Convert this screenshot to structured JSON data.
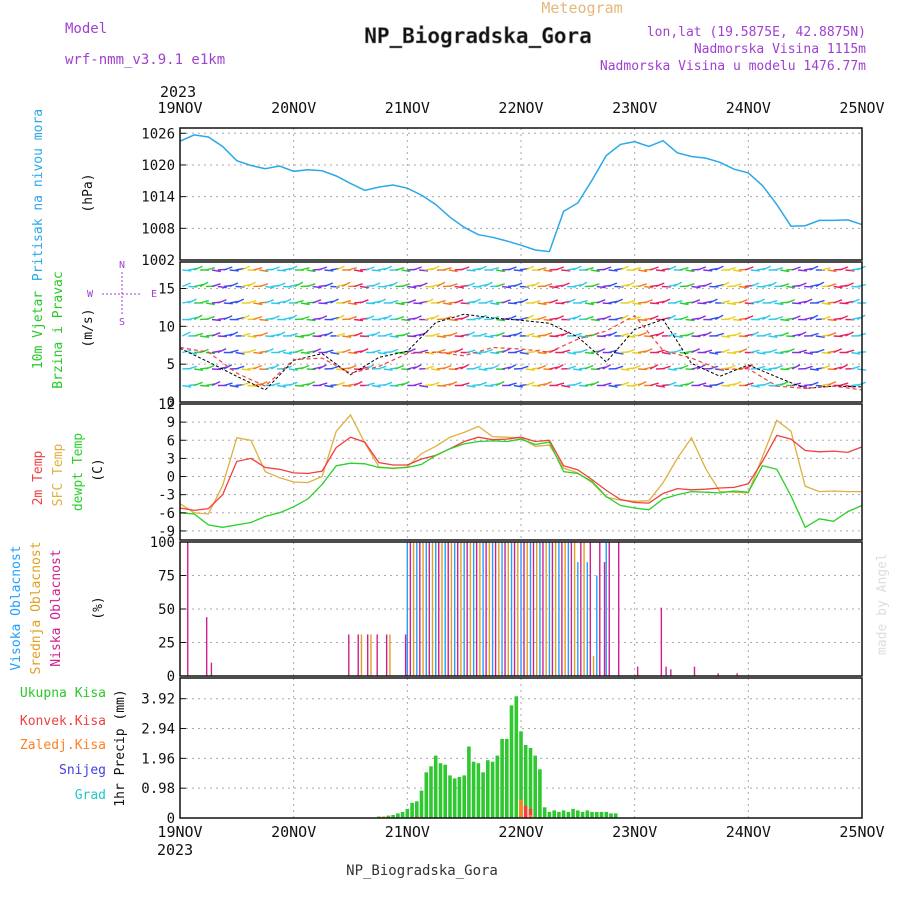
{
  "header": {
    "model_label": "Model",
    "model_name": "wrf-nmm_v3.9.1  e1km",
    "meteogram_label": "Meteogram",
    "station_title": "NP_Biogradska_Gora",
    "lonlat": "lon,lat (19.5875E, 42.8875N)",
    "elevation": "Nadmorska Visina 1115m",
    "model_elevation": "Nadmorska Visina u modelu 1476.77m"
  },
  "footer": {
    "station": "NP_Biogradska_Gora",
    "watermark": "made by Angel"
  },
  "time_axis": {
    "year": "2023",
    "ticks": [
      "19NOV",
      "20NOV",
      "21NOV",
      "22NOV",
      "23NOV",
      "24NOV",
      "25NOV"
    ],
    "hours_per_day": 24,
    "total_hours": 144
  },
  "colors": {
    "pressure": "#2aa8e8",
    "temp2m": "#f04040",
    "sfc_temp": "#e0b040",
    "dewpoint": "#28d028",
    "high_cloud": "#20a0ff",
    "mid_cloud": "#e0a020",
    "low_cloud": "#d02090",
    "total_precip": "#30c830",
    "conv_precip": "#f04040",
    "frozen_precip": "#ff8020",
    "snow": "#4040e0",
    "grad": "#20c8c8",
    "wind_speed": "#000000",
    "wind_gust": "#f04040",
    "legend_purple": "#a040d0"
  },
  "chart_data": [
    {
      "type": "line",
      "panel": "pressure",
      "ylabel": "Pritisak na nivou mora",
      "yunit": "(hPa)",
      "ylim": [
        1002,
        1027
      ],
      "yticks": [
        1002,
        1008,
        1014,
        1020,
        1026
      ],
      "grid": true,
      "series": [
        {
          "name": "Pritisak na nivou mora",
          "x": [
            0,
            3,
            6,
            9,
            12,
            15,
            18,
            21,
            24,
            27,
            30,
            33,
            36,
            39,
            42,
            45,
            48,
            51,
            54,
            57,
            60,
            63,
            66,
            69,
            72,
            75,
            78,
            81,
            84,
            87,
            90,
            93,
            96,
            99,
            102,
            105,
            108,
            111,
            114,
            117,
            120,
            123,
            126,
            129,
            132,
            135,
            138,
            141,
            144
          ],
          "y": [
            1024.5,
            1025.7,
            1025.3,
            1023.5,
            1020.8,
            1019.9,
            1019.3,
            1019.8,
            1018.8,
            1019.1,
            1018.9,
            1017.9,
            1016.5,
            1015.2,
            1015.8,
            1016.2,
            1015.6,
            1014.3,
            1012.5,
            1010.1,
            1008.2,
            1006.8,
            1006.3,
            1005.6,
            1004.8,
            1003.9,
            1003.6,
            1011.2,
            1012.8,
            1017.1,
            1021.8,
            1023.9,
            1024.4,
            1023.5,
            1024.6,
            1022.3,
            1021.6,
            1021.3,
            1020.5,
            1019.2,
            1018.5,
            1016.1,
            1012.5,
            1008.4,
            1008.5,
            1009.5,
            1009.5,
            1009.6,
            1008.7
          ]
        }
      ]
    },
    {
      "type": "line",
      "panel": "wind",
      "ylabel": "10m Vjetar Brzina i Pravac",
      "yunit": "(m/s)",
      "ylim": [
        0,
        18.5
      ],
      "yticks": [
        0,
        5,
        10,
        15
      ],
      "grid": true,
      "compass": [
        "N",
        "E",
        "S",
        "W"
      ],
      "series": [
        {
          "name": "brzina",
          "x": [
            0,
            6,
            12,
            18,
            24,
            30,
            36,
            42,
            48,
            54,
            60,
            66,
            72,
            78,
            84,
            90,
            96,
            102,
            108,
            114,
            120,
            126,
            132,
            138,
            144
          ],
          "y": [
            7.1,
            5.3,
            3.4,
            1.6,
            5.5,
            6.4,
            3.6,
            5.9,
            6.7,
            10.5,
            11.6,
            11.1,
            10.8,
            10.4,
            8.6,
            5.3,
            9.6,
            10.9,
            5.1,
            3.4,
            4.9,
            3.3,
            1.8,
            2.1,
            2.0
          ]
        },
        {
          "name": "udari",
          "x": [
            0,
            6,
            12,
            18,
            24,
            30,
            36,
            42,
            48,
            54,
            60,
            66,
            72,
            78,
            84,
            90,
            96,
            102,
            108,
            114,
            120,
            126,
            132,
            138,
            144
          ],
          "y": [
            7.2,
            6.6,
            3.8,
            2.1,
            5.6,
            5.8,
            3.8,
            4.7,
            6.4,
            6.6,
            6.1,
            7.2,
            7.0,
            6.6,
            8.3,
            9.4,
            11.4,
            6.8,
            5.8,
            4.3,
            4.4,
            2.1,
            1.8,
            2.1,
            1.6
          ]
        }
      ]
    },
    {
      "type": "line",
      "panel": "temperature",
      "ylabel": "Temp",
      "yunit": "(C)",
      "ylim": [
        -10.5,
        12
      ],
      "yticks": [
        -9,
        -6,
        -3,
        0,
        3,
        6,
        9,
        12
      ],
      "grid": true,
      "series": [
        {
          "name": "2m Temp",
          "x": [
            0,
            3,
            6,
            9,
            12,
            15,
            18,
            21,
            24,
            27,
            30,
            33,
            36,
            39,
            42,
            45,
            48,
            51,
            54,
            57,
            60,
            63,
            66,
            69,
            72,
            75,
            78,
            81,
            84,
            87,
            90,
            93,
            96,
            99,
            102,
            105,
            108,
            111,
            114,
            117,
            120,
            123,
            126,
            129,
            132,
            135,
            138,
            141,
            144
          ],
          "y": [
            -5.2,
            -5.6,
            -5.3,
            -3.0,
            2.5,
            3.0,
            1.5,
            1.2,
            0.6,
            0.5,
            0.9,
            4.8,
            6.5,
            5.7,
            2.3,
            1.9,
            1.9,
            2.9,
            3.5,
            4.6,
            5.8,
            6.5,
            6.1,
            6.2,
            6.5,
            5.8,
            6.0,
            1.8,
            1.1,
            -0.5,
            -2.3,
            -3.8,
            -4.3,
            -4.4,
            -2.8,
            -2.0,
            -2.2,
            -2.1,
            -1.9,
            -1.8,
            -1.2,
            2.5,
            6.8,
            6.2,
            4.3,
            4.1,
            4.2,
            4.0,
            4.9
          ]
        },
        {
          "name": "SFC Temp",
          "x": [
            0,
            3,
            6,
            9,
            12,
            15,
            18,
            21,
            24,
            27,
            30,
            33,
            36,
            39,
            42,
            45,
            48,
            51,
            54,
            57,
            60,
            63,
            66,
            69,
            72,
            75,
            78,
            81,
            84,
            87,
            90,
            93,
            96,
            99,
            102,
            105,
            108,
            111,
            114,
            117,
            120,
            123,
            126,
            129,
            132,
            135,
            138,
            141,
            144
          ],
          "y": [
            -4.5,
            -6.0,
            -6.2,
            -1.5,
            6.4,
            6.0,
            0.8,
            -0.2,
            -0.9,
            -1.0,
            0.0,
            7.5,
            10.2,
            5.6,
            1.6,
            1.3,
            1.6,
            3.8,
            5.0,
            6.5,
            7.3,
            8.3,
            6.6,
            6.5,
            6.4,
            5.0,
            5.2,
            1.4,
            0.6,
            -1.0,
            -3.4,
            -3.9,
            -4.1,
            -4.0,
            -1.0,
            3.0,
            6.4,
            1.3,
            -2.5,
            -2.6,
            -2.7,
            3.3,
            9.3,
            7.5,
            -1.6,
            -2.5,
            -2.4,
            -2.5,
            -2.5
          ]
        },
        {
          "name": "dewpt Temp",
          "x": [
            0,
            3,
            6,
            9,
            12,
            15,
            18,
            21,
            24,
            27,
            30,
            33,
            36,
            39,
            42,
            45,
            48,
            51,
            54,
            57,
            60,
            63,
            66,
            69,
            72,
            75,
            78,
            81,
            84,
            87,
            90,
            93,
            96,
            99,
            102,
            105,
            108,
            111,
            114,
            117,
            120,
            123,
            126,
            129,
            132,
            135,
            138,
            141,
            144
          ],
          "y": [
            -6.0,
            -6.2,
            -8.0,
            -8.4,
            -8.0,
            -7.6,
            -6.6,
            -6.0,
            -5.0,
            -3.7,
            -1.3,
            1.8,
            2.2,
            2.1,
            1.5,
            1.4,
            1.5,
            2.0,
            3.5,
            4.6,
            5.4,
            5.8,
            5.9,
            5.8,
            6.2,
            5.3,
            5.7,
            0.8,
            0.5,
            -0.8,
            -3.3,
            -4.8,
            -5.2,
            -5.5,
            -3.7,
            -3.0,
            -2.5,
            -2.6,
            -2.7,
            -2.4,
            -2.6,
            1.8,
            1.2,
            -3.2,
            -8.4,
            -7.0,
            -7.4,
            -5.8,
            -4.8
          ]
        }
      ]
    },
    {
      "type": "bar",
      "panel": "cloud",
      "ylabel": "Oblacnost",
      "yunit": "(%)",
      "ylim": [
        0,
        100
      ],
      "yticks": [
        0,
        25,
        50,
        75,
        100
      ],
      "grid": true,
      "series": [
        {
          "name": "Visoka Oblacnost",
          "x": [
            48,
            50,
            52,
            54,
            56,
            58,
            60,
            62,
            64,
            66,
            68,
            70,
            72,
            74,
            76,
            78,
            80,
            82,
            84,
            86,
            88,
            90
          ],
          "y": [
            100,
            100,
            100,
            100,
            100,
            100,
            100,
            100,
            100,
            100,
            100,
            100,
            100,
            100,
            100,
            100,
            100,
            100,
            85,
            85,
            75,
            100
          ]
        },
        {
          "name": "Srednja Oblacnost",
          "x": [
            38,
            40,
            44,
            49,
            51,
            53,
            55,
            57,
            59,
            61,
            63,
            65,
            67,
            69,
            71,
            73,
            75,
            77,
            79,
            81,
            83,
            85,
            87
          ],
          "y": [
            31,
            31,
            31,
            100,
            100,
            100,
            100,
            100,
            100,
            100,
            100,
            100,
            100,
            100,
            100,
            100,
            100,
            100,
            100,
            100,
            100,
            100,
            15
          ]
        },
        {
          "name": "Niska Oblacnost",
          "x": [
            1,
            5,
            6,
            35,
            37,
            39,
            41,
            43,
            47,
            48,
            50,
            52,
            54,
            56,
            58,
            60,
            62,
            64,
            66,
            68,
            70,
            72,
            74,
            76,
            78,
            80,
            82,
            84,
            86,
            88,
            89,
            90,
            92,
            96,
            101,
            102,
            103,
            108,
            113,
            117
          ],
          "y": [
            100,
            44,
            10,
            31,
            31,
            31,
            31,
            31,
            31,
            100,
            100,
            100,
            100,
            100,
            100,
            100,
            100,
            100,
            100,
            100,
            100,
            100,
            100,
            100,
            100,
            100,
            100,
            100,
            100,
            100,
            85,
            100,
            100,
            7,
            51,
            7,
            5,
            7,
            2,
            2
          ]
        }
      ]
    },
    {
      "type": "bar",
      "panel": "precip",
      "ylabel": "1hr Precip",
      "yunit": "(mm)",
      "ylim": [
        0,
        4.6
      ],
      "yticks": [
        0,
        0.98,
        1.96,
        2.94,
        3.92
      ],
      "grid": true,
      "series": [
        {
          "name": "Ukupna Kisa",
          "x": [
            42,
            44,
            45,
            46,
            47,
            48,
            49,
            50,
            51,
            52,
            53,
            54,
            55,
            56,
            57,
            58,
            59,
            60,
            61,
            62,
            63,
            64,
            65,
            66,
            67,
            68,
            69,
            70,
            71,
            72,
            73,
            74,
            75,
            76,
            77,
            78,
            79,
            80,
            81,
            82,
            83,
            84,
            85,
            86,
            87,
            88,
            89,
            90,
            91,
            92
          ],
          "y": [
            0.05,
            0.08,
            0.1,
            0.15,
            0.2,
            0.3,
            0.5,
            0.55,
            0.9,
            1.5,
            1.7,
            2.05,
            1.8,
            1.75,
            1.4,
            1.3,
            1.35,
            1.4,
            2.35,
            1.85,
            1.8,
            1.5,
            1.9,
            1.85,
            2.05,
            2.6,
            2.6,
            3.7,
            4.0,
            2.85,
            2.4,
            2.3,
            2.05,
            1.6,
            0.35,
            0.2,
            0.25,
            0.2,
            0.25,
            0.2,
            0.3,
            0.25,
            0.2,
            0.25,
            0.2,
            0.2,
            0.2,
            0.2,
            0.15,
            0.15
          ]
        },
        {
          "name": "Konvek.Kisa",
          "x": [
            50,
            72,
            73,
            74
          ],
          "y": [
            0.05,
            0.1,
            0.4,
            0.3
          ]
        },
        {
          "name": "Zaledj.Kisa",
          "x": [
            43,
            72,
            74
          ],
          "y": [
            0.05,
            0.6,
            0.1
          ]
        },
        {
          "name": "Snijeg",
          "x": [],
          "y": []
        },
        {
          "name": "Grad",
          "x": [],
          "y": []
        }
      ]
    }
  ],
  "labels": {
    "pressure_title": "Pritisak na nivou mora",
    "pressure_unit": "(hPa)",
    "wind_title_1": "10m Vjetar",
    "wind_title_2": "Brzina i Pravac",
    "wind_unit": "(m/s)",
    "temp_2m": "2m Temp",
    "temp_sfc": "SFC Temp",
    "temp_dewpt": "dewpt Temp",
    "temp_unit": "(C)",
    "cloud_high": "Visoka Oblacnost",
    "cloud_mid": "Srednja Oblacnost",
    "cloud_low": "Niska Oblacnost",
    "cloud_unit": "(%)",
    "precip_unit": "1hr Precip (mm)",
    "legend_total": "Ukupna Kisa",
    "legend_conv": "Konvek.Kisa",
    "legend_frozen": "Zaledj.Kisa",
    "legend_snow": "Snijeg",
    "legend_grad": "Grad"
  }
}
